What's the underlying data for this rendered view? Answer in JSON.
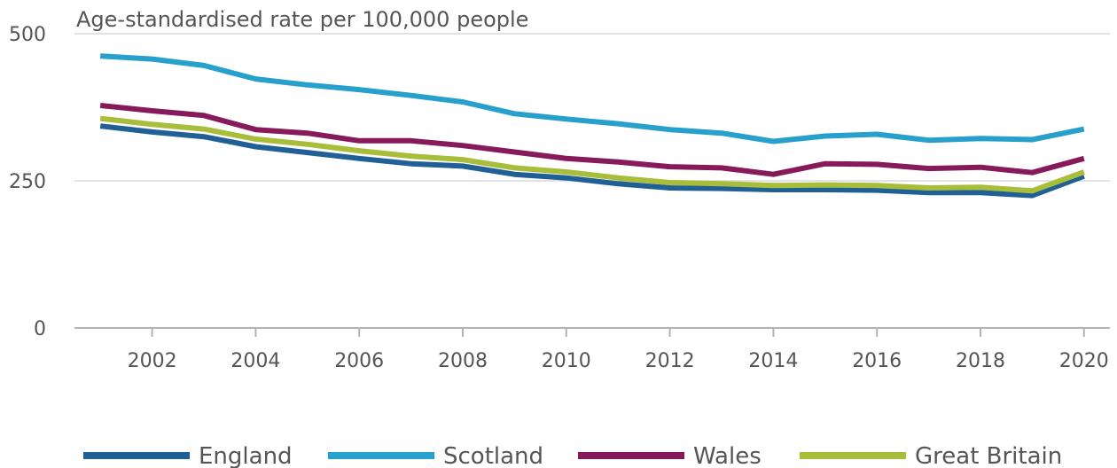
{
  "chart_data": {
    "type": "line",
    "ylabel": "Age-standardised rate per 100,000 people",
    "ylim": [
      0,
      500
    ],
    "yticks": [
      0,
      250,
      500
    ],
    "xlim": [
      2000.5,
      2020.5
    ],
    "xticks": [
      2002,
      2004,
      2006,
      2008,
      2010,
      2012,
      2014,
      2016,
      2018,
      2020
    ],
    "grid": "horizontal",
    "legend": "bottom",
    "x": [
      2001,
      2002,
      2003,
      2004,
      2005,
      2006,
      2007,
      2008,
      2009,
      2010,
      2011,
      2012,
      2013,
      2014,
      2015,
      2016,
      2017,
      2018,
      2019,
      2020
    ],
    "series": [
      {
        "name": "England",
        "color": "#206095",
        "values": [
          343,
          333,
          325,
          308,
          298,
          288,
          279,
          275,
          261,
          255,
          245,
          238,
          237,
          235,
          235,
          234,
          230,
          230,
          225,
          258
        ]
      },
      {
        "name": "Scotland",
        "color": "#27a0cc",
        "values": [
          462,
          457,
          446,
          423,
          413,
          405,
          395,
          384,
          364,
          355,
          347,
          337,
          331,
          317,
          326,
          329,
          319,
          322,
          320,
          338
        ]
      },
      {
        "name": "Wales",
        "color": "#871a5b",
        "values": [
          378,
          369,
          361,
          337,
          331,
          318,
          318,
          310,
          299,
          288,
          282,
          274,
          272,
          261,
          279,
          278,
          271,
          273,
          264,
          288
        ]
      },
      {
        "name": "Great Britain",
        "color": "#a8bd3a",
        "values": [
          356,
          346,
          338,
          321,
          312,
          301,
          292,
          286,
          272,
          265,
          255,
          247,
          245,
          242,
          243,
          242,
          238,
          239,
          233,
          265
        ]
      }
    ]
  }
}
